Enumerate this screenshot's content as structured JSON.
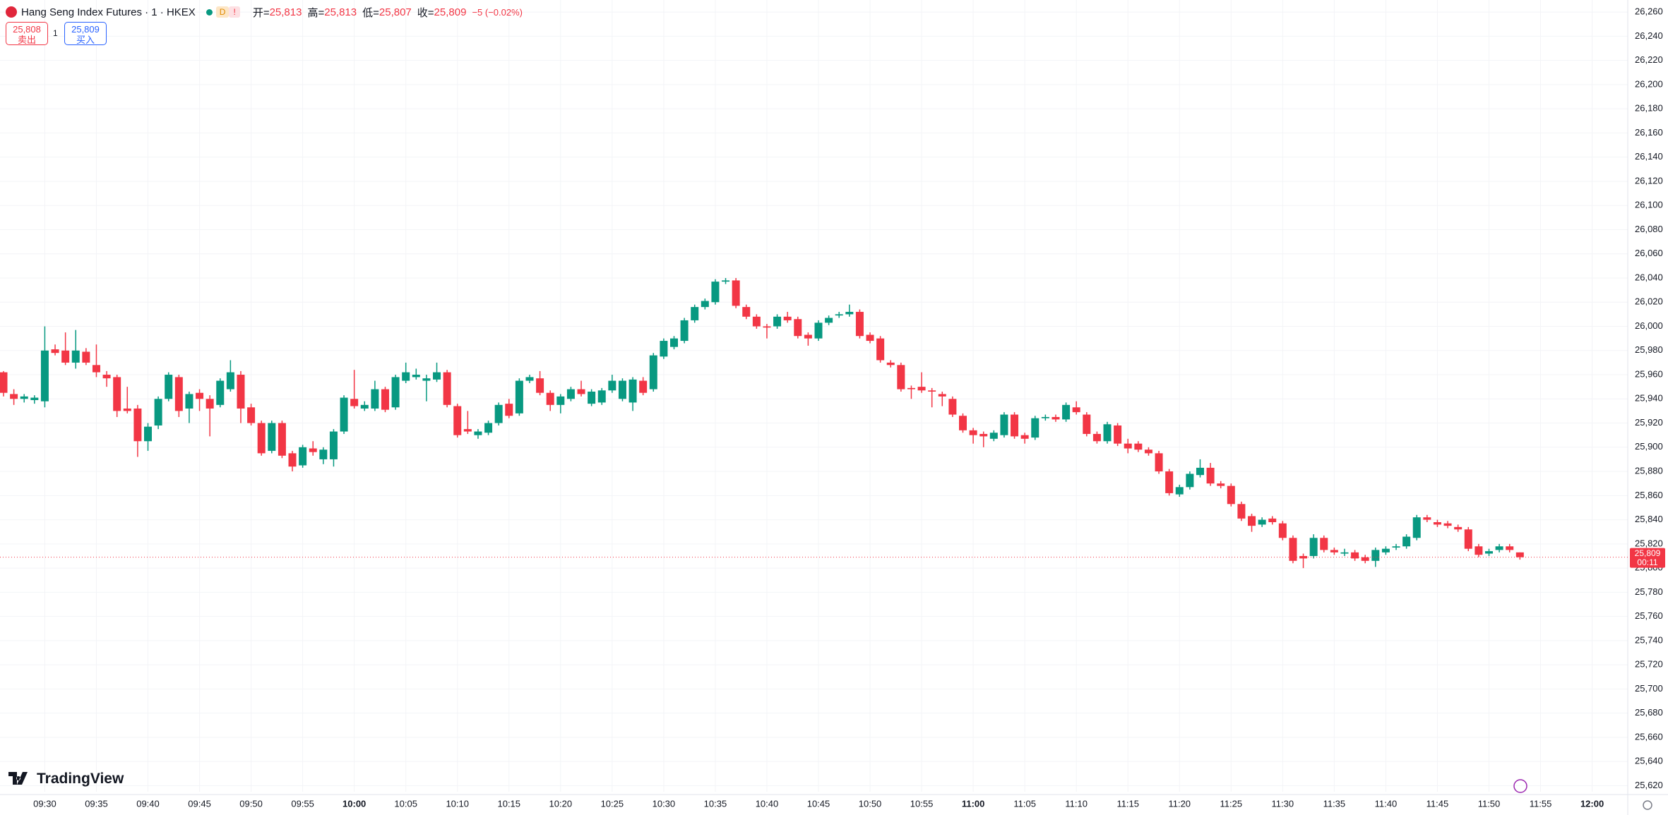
{
  "header": {
    "symbol": "Hang Seng Index Futures · 1 · HKEX",
    "badge": "D",
    "alert": "!",
    "ohlc": [
      {
        "label": "开=",
        "value": "25,813"
      },
      {
        "label": "高=",
        "value": "25,813"
      },
      {
        "label": "低=",
        "value": "25,807"
      },
      {
        "label": "收=",
        "value": "25,809"
      }
    ],
    "change": "−5 (−0.02%)"
  },
  "trade": {
    "sell_price": "25,808",
    "sell_label": "卖出",
    "qty": "1",
    "buy_price": "25,809",
    "buy_label": "买入"
  },
  "logo": "TradingView",
  "chart_data": {
    "type": "candlestick",
    "up_color": "#089981",
    "down_color": "#f23645",
    "grid": true,
    "xlim": [
      "09:26",
      "12:04"
    ],
    "ylim": [
      25615,
      26270
    ],
    "x": [
      "09:26",
      "09:27",
      "09:28",
      "09:29",
      "09:30",
      "09:31",
      "09:32",
      "09:33",
      "09:34",
      "09:35",
      "09:36",
      "09:37",
      "09:38",
      "09:39",
      "09:40",
      "09:41",
      "09:42",
      "09:43",
      "09:44",
      "09:45",
      "09:46",
      "09:47",
      "09:48",
      "09:49",
      "09:50",
      "09:51",
      "09:52",
      "09:53",
      "09:54",
      "09:55",
      "09:56",
      "09:57",
      "09:58",
      "09:59",
      "10:00",
      "10:01",
      "10:02",
      "10:03",
      "10:04",
      "10:05",
      "10:06",
      "10:07",
      "10:08",
      "10:09",
      "10:10",
      "10:11",
      "10:12",
      "10:13",
      "10:14",
      "10:15",
      "10:16",
      "10:17",
      "10:18",
      "10:19",
      "10:20",
      "10:21",
      "10:22",
      "10:23",
      "10:24",
      "10:25",
      "10:26",
      "10:27",
      "10:28",
      "10:29",
      "10:30",
      "10:31",
      "10:32",
      "10:33",
      "10:34",
      "10:35",
      "10:36",
      "10:37",
      "10:38",
      "10:39",
      "10:40",
      "10:41",
      "10:42",
      "10:43",
      "10:44",
      "10:45",
      "10:46",
      "10:47",
      "10:48",
      "10:49",
      "10:50",
      "10:51",
      "10:52",
      "10:53",
      "10:54",
      "10:55",
      "10:56",
      "10:57",
      "10:58",
      "10:59",
      "11:00",
      "11:01",
      "11:02",
      "11:03",
      "11:04",
      "11:05",
      "11:06",
      "11:07",
      "11:08",
      "11:09",
      "11:10",
      "11:11",
      "11:12",
      "11:13",
      "11:14",
      "11:15",
      "11:16",
      "11:17",
      "11:18",
      "11:19",
      "11:20",
      "11:21",
      "11:22",
      "11:23",
      "11:24",
      "11:25",
      "11:26",
      "11:27",
      "11:28",
      "11:29",
      "11:30",
      "11:31",
      "11:32",
      "11:33",
      "11:34",
      "11:35",
      "11:36",
      "11:37",
      "11:38",
      "11:39",
      "11:40",
      "11:41",
      "11:42",
      "11:43",
      "11:44",
      "11:45",
      "11:46",
      "11:47",
      "11:48",
      "11:49",
      "11:50",
      "11:51",
      "11:52",
      "11:53"
    ],
    "open": [
      25962,
      25944,
      25940,
      25939,
      25938,
      25981,
      25980,
      25970,
      25979,
      25968,
      25960,
      25958,
      25932,
      25932,
      25905,
      25918,
      25940,
      25958,
      25932,
      25945,
      25940,
      25935,
      25948,
      25960,
      25933,
      25920,
      25897,
      25920,
      25895,
      25885,
      25899,
      25890,
      25890,
      25913,
      25940,
      25932,
      25932,
      25948,
      25933,
      25955,
      25958,
      25955,
      25956,
      25962,
      25934,
      25915,
      25910,
      25912,
      25920,
      25936,
      25928,
      25955,
      25957,
      25945,
      25935,
      25940,
      25948,
      25936,
      25937,
      25947,
      25940,
      25937,
      25955,
      25948,
      25975,
      25983,
      25988,
      26005,
      26016,
      26020,
      26037,
      26038,
      26016,
      26008,
      26000,
      26000,
      26008,
      26006,
      25993,
      25990,
      26003,
      26009,
      26010,
      26012,
      25993,
      25990,
      25970,
      25968,
      25949,
      25950,
      25947,
      25944,
      25940,
      25926,
      25914,
      25911,
      25907,
      25910,
      25927,
      25910,
      25908,
      25924,
      25925,
      25923,
      25933,
      25927,
      25911,
      25905,
      25918,
      25903,
      25903,
      25898,
      25895,
      25880,
      25861,
      25867,
      25877,
      25883,
      25870,
      25868,
      25853,
      25843,
      25836,
      25841,
      25837,
      25825,
      25810,
      25810,
      25825,
      25815,
      25812,
      25813,
      25809,
      25806,
      25813,
      25817,
      25818,
      25825,
      25842,
      25838,
      25837,
      25834,
      25832,
      25818,
      25812,
      25815,
      25818,
      25813
    ],
    "high": [
      25963,
      25948,
      25944,
      25943,
      26000,
      25985,
      25995,
      25997,
      25982,
      25985,
      25963,
      25960,
      25950,
      25935,
      25920,
      25942,
      25962,
      25960,
      25946,
      25948,
      25943,
      25957,
      25972,
      25963,
      25936,
      25922,
      25922,
      25922,
      25897,
      25902,
      25905,
      25900,
      25915,
      25943,
      25964,
      25938,
      25955,
      25950,
      25960,
      25970,
      25965,
      25960,
      25970,
      25964,
      25936,
      25930,
      25915,
      25922,
      25937,
      25940,
      25957,
      25960,
      25963,
      25947,
      25944,
      25950,
      25955,
      25948,
      25949,
      25960,
      25957,
      25958,
      25958,
      25978,
      25990,
      25992,
      26007,
      26018,
      26023,
      26039,
      26040,
      26040,
      26018,
      26010,
      26002,
      26010,
      26012,
      26008,
      25995,
      26005,
      26009,
      26012,
      26018,
      26014,
      25995,
      25992,
      25972,
      25970,
      25951,
      25962,
      25949,
      25946,
      25942,
      25928,
      25916,
      25913,
      25914,
      25929,
      25929,
      25912,
      25926,
      25927,
      25927,
      25937,
      25938,
      25929,
      25913,
      25921,
      25920,
      25907,
      25905,
      25900,
      25897,
      25882,
      25869,
      25880,
      25890,
      25887,
      25872,
      25870,
      25855,
      25845,
      25842,
      25843,
      25839,
      25827,
      25812,
      25828,
      25827,
      25817,
      25816,
      25815,
      25811,
      25817,
      25818,
      25820,
      25828,
      25844,
      25844,
      25840,
      25839,
      25836,
      25834,
      25820,
      25816,
      25820,
      25820,
      25813
    ],
    "low": [
      25942,
      25935,
      25937,
      25936,
      25933,
      25976,
      25968,
      25965,
      25968,
      25958,
      25950,
      25925,
      25928,
      25892,
      25897,
      25915,
      25938,
      25925,
      25920,
      25930,
      25909,
      25933,
      25946,
      25920,
      25918,
      25893,
      25895,
      25891,
      25880,
      25883,
      25893,
      25886,
      25884,
      25911,
      25932,
      25930,
      25930,
      25929,
      25931,
      25953,
      25956,
      25938,
      25954,
      25933,
      25908,
      25911,
      25907,
      25910,
      25918,
      25924,
      25926,
      25953,
      25943,
      25930,
      25928,
      25938,
      25942,
      25934,
      25935,
      25945,
      25938,
      25930,
      25943,
      25946,
      25973,
      25981,
      25986,
      26003,
      26014,
      26018,
      26035,
      26015,
      26006,
      25998,
      25990,
      25998,
      26003,
      25990,
      25984,
      25988,
      26001,
      26007,
      26008,
      25990,
      25986,
      25970,
      25966,
      25946,
      25940,
      25945,
      25933,
      25934,
      25925,
      25912,
      25903,
      25900,
      25905,
      25908,
      25907,
      25903,
      25906,
      25922,
      25921,
      25921,
      25927,
      25909,
      25903,
      25903,
      25901,
      25895,
      25896,
      25893,
      25878,
      25860,
      25859,
      25865,
      25875,
      25868,
      25866,
      25851,
      25839,
      25830,
      25834,
      25836,
      25823,
      25804,
      25800,
      25808,
      25813,
      25811,
      25810,
      25806,
      25804,
      25801,
      25811,
      25815,
      25816,
      25823,
      25838,
      25834,
      25833,
      25830,
      25814,
      25809,
      25810,
      25813,
      25813,
      25807
    ],
    "close": [
      25945,
      25940,
      25942,
      25941,
      25980,
      25978,
      25970,
      25980,
      25970,
      25962,
      25957,
      25930,
      25930,
      25905,
      25917,
      25940,
      25960,
      25930,
      25944,
      25940,
      25932,
      25955,
      25962,
      25932,
      25920,
      25895,
      25920,
      25893,
      25884,
      25900,
      25896,
      25898,
      25913,
      25941,
      25934,
      25935,
      25948,
      25931,
      25958,
      25962,
      25960,
      25957,
      25962,
      25935,
      25910,
      25913,
      25913,
      25920,
      25935,
      25926,
      25955,
      25958,
      25945,
      25935,
      25942,
      25948,
      25944,
      25946,
      25947,
      25955,
      25955,
      25956,
      25945,
      25976,
      25988,
      25990,
      26005,
      26016,
      26021,
      26037,
      26038,
      26017,
      26008,
      26000,
      25999,
      26008,
      26005,
      25992,
      25990,
      26003,
      26007,
      26010,
      26012,
      25992,
      25988,
      25972,
      25968,
      25948,
      25948,
      25947,
      25946,
      25942,
      25927,
      25914,
      25910,
      25909,
      25912,
      25927,
      25909,
      25907,
      25924,
      25925,
      25923,
      25935,
      25929,
      25911,
      25905,
      25919,
      25903,
      25899,
      25898,
      25895,
      25880,
      25862,
      25867,
      25878,
      25883,
      25870,
      25868,
      25853,
      25841,
      25835,
      25840,
      25838,
      25825,
      25806,
      25808,
      25825,
      25815,
      25813,
      25813,
      25808,
      25806,
      25815,
      25816,
      25818,
      25826,
      25842,
      25840,
      25836,
      25835,
      25832,
      25816,
      25811,
      25814,
      25818,
      25815,
      25809
    ],
    "xticks": [
      "09:30",
      "09:35",
      "09:40",
      "09:45",
      "09:50",
      "09:55",
      "10:00",
      "10:05",
      "10:10",
      "10:15",
      "10:20",
      "10:25",
      "10:30",
      "10:35",
      "10:40",
      "10:45",
      "10:50",
      "10:55",
      "11:00",
      "11:05",
      "11:10",
      "11:15",
      "11:20",
      "11:25",
      "11:30",
      "11:35",
      "11:40",
      "11:45",
      "11:50",
      "11:55",
      "12:00"
    ],
    "yticks": [
      {
        "value": 25620,
        "label": "25,620"
      },
      {
        "value": 25640,
        "label": "25,640"
      },
      {
        "value": 25660,
        "label": "25,660"
      },
      {
        "value": 25680,
        "label": "25,680"
      },
      {
        "value": 25700,
        "label": "25,700"
      },
      {
        "value": 25720,
        "label": "25,720"
      },
      {
        "value": 25740,
        "label": "25,740"
      },
      {
        "value": 25760,
        "label": "25,760"
      },
      {
        "value": 25780,
        "label": "25,780"
      },
      {
        "value": 25800,
        "label": "25,800"
      },
      {
        "value": 25820,
        "label": "25,820"
      },
      {
        "value": 25840,
        "label": "25,840"
      },
      {
        "value": 25860,
        "label": "25,860"
      },
      {
        "value": 25880,
        "label": "25,880"
      },
      {
        "value": 25900,
        "label": "25,900"
      },
      {
        "value": 25920,
        "label": "25,920"
      },
      {
        "value": 25940,
        "label": "25,940"
      },
      {
        "value": 25960,
        "label": "25,960"
      },
      {
        "value": 25980,
        "label": "25,980"
      },
      {
        "value": 26000,
        "label": "26,000"
      },
      {
        "value": 26020,
        "label": "26,020"
      },
      {
        "value": 26040,
        "label": "26,040"
      },
      {
        "value": 26060,
        "label": "26,060"
      },
      {
        "value": 26080,
        "label": "26,080"
      },
      {
        "value": 26100,
        "label": "26,100"
      },
      {
        "value": 26120,
        "label": "26,120"
      },
      {
        "value": 26140,
        "label": "26,140"
      },
      {
        "value": 26160,
        "label": "26,160"
      },
      {
        "value": 26180,
        "label": "26,180"
      },
      {
        "value": 26200,
        "label": "26,200"
      },
      {
        "value": 26220,
        "label": "26,220"
      },
      {
        "value": 26240,
        "label": "26,240"
      },
      {
        "value": 26260,
        "label": "26,260"
      }
    ],
    "price_tag": {
      "value": 25809,
      "label": "25,809",
      "countdown": "00:11"
    }
  }
}
